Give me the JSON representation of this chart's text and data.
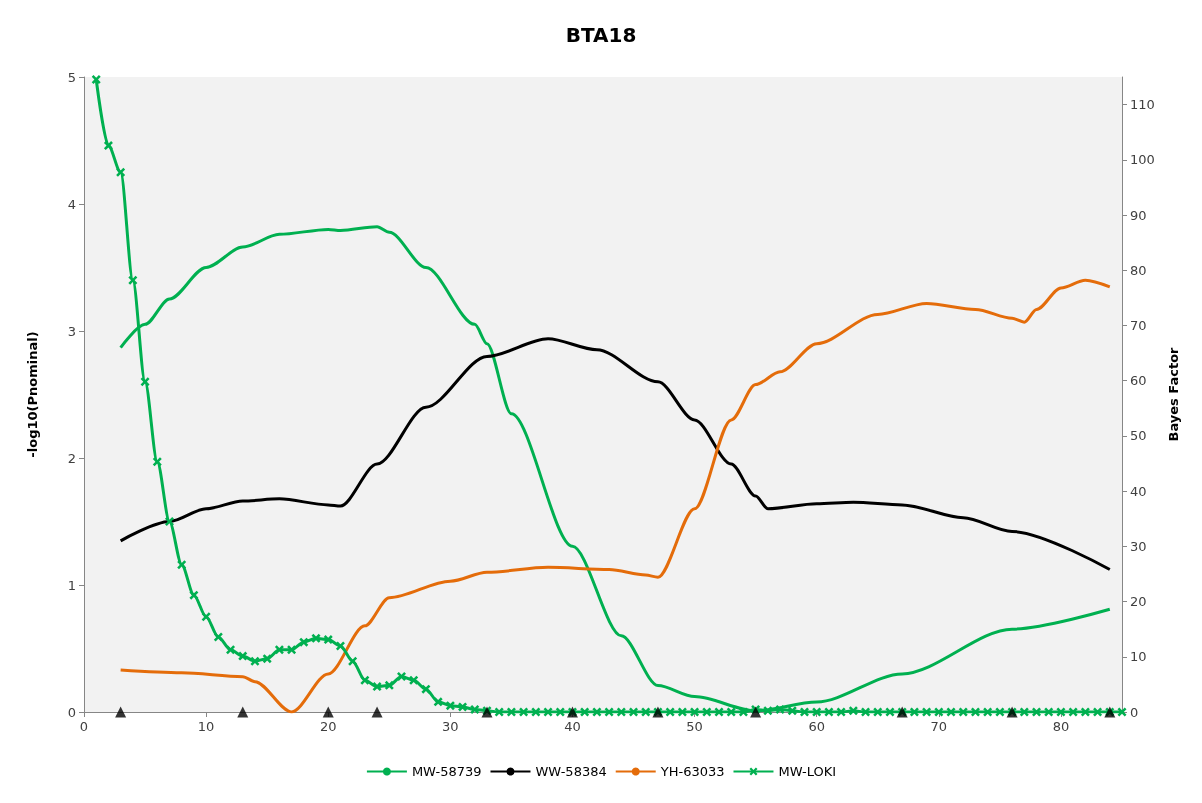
{
  "chart_data": {
    "type": "line",
    "title": "BTA18",
    "ylabel": "-log10(Pnominal)",
    "y2label": "Bayes Factor",
    "xlim": [
      0,
      85
    ],
    "xticks": [
      0,
      10,
      20,
      30,
      40,
      50,
      60,
      70,
      80
    ],
    "ylim": [
      0,
      5
    ],
    "yticks": [
      0,
      1,
      2,
      3,
      4,
      5
    ],
    "y2lim": [
      0,
      115
    ],
    "y2ticks": [
      0,
      10,
      20,
      30,
      40,
      50,
      60,
      70,
      80,
      90,
      100,
      110
    ],
    "grid": false,
    "legend": "bottom",
    "marker": "none",
    "series": [
      {
        "name": "MW-58739",
        "color": "#00b050",
        "axis": "y2",
        "x": [
          3,
          5,
          7,
          10,
          13,
          16,
          20,
          21,
          24,
          25,
          28,
          32,
          33,
          35,
          40,
          44,
          47,
          50,
          55,
          60,
          67,
          76,
          84
        ],
        "values": [
          66,
          70.2,
          74.8,
          80.5,
          84.2,
          86.5,
          87.4,
          87.2,
          87.9,
          86.9,
          80.5,
          70.2,
          66.7,
          54,
          30,
          13.8,
          4.8,
          2.8,
          0.2,
          1.8,
          6.9,
          15,
          18.6
        ]
      },
      {
        "name": "WW-58384",
        "color": "#000000",
        "axis": "y2",
        "x": [
          3,
          7,
          10,
          13,
          16,
          20,
          21,
          24,
          28,
          33,
          38,
          42,
          47,
          50,
          53,
          55,
          56,
          60,
          63,
          67,
          72,
          76,
          84
        ],
        "values": [
          31,
          34.5,
          36.8,
          38.2,
          38.6,
          37.5,
          37.3,
          44.9,
          55.2,
          64.4,
          67.6,
          65.6,
          59.8,
          52.9,
          44.9,
          39.1,
          36.8,
          37.7,
          38,
          37.5,
          35.2,
          32.7,
          25.8
        ]
      },
      {
        "name": "YH-63033",
        "color": "#e46c0a",
        "axis": "y2",
        "x": [
          3,
          8,
          13,
          14,
          17,
          20,
          23,
          25,
          30,
          33,
          38,
          43,
          46,
          47,
          50,
          53,
          55,
          57,
          60,
          65,
          69,
          73,
          76,
          77,
          78,
          80,
          82,
          84
        ],
        "values": [
          7.6,
          7.1,
          6.4,
          5.5,
          0,
          6.9,
          15.6,
          20.7,
          23.7,
          25.3,
          26.2,
          25.8,
          24.8,
          24.4,
          36.8,
          52.9,
          59.3,
          61.6,
          66.7,
          72,
          74,
          72.9,
          71.3,
          70.6,
          72.9,
          76.8,
          78.2,
          77
        ]
      },
      {
        "name": "MW-LOKI",
        "color": "#00b050",
        "axis": "y",
        "marker": "cross",
        "x": [
          1,
          2,
          3,
          4,
          5,
          6,
          7,
          8,
          9,
          10,
          11,
          12,
          13,
          14,
          15,
          16,
          17,
          18,
          19,
          20,
          21,
          22,
          23,
          24,
          25,
          26,
          27,
          28,
          29,
          30,
          31,
          32,
          33,
          34,
          35,
          36,
          37,
          38,
          39,
          40,
          41,
          42,
          43,
          44,
          45,
          46,
          47,
          48,
          49,
          50,
          51,
          52,
          53,
          54,
          55,
          56,
          57,
          58,
          59,
          60,
          61,
          62,
          63,
          64,
          65,
          66,
          67,
          68,
          69,
          70,
          71,
          72,
          73,
          74,
          75,
          76,
          77,
          78,
          79,
          80,
          81,
          82,
          83,
          84,
          85
        ],
        "values": [
          4.98,
          4.46,
          4.25,
          3.4,
          2.6,
          1.97,
          1.5,
          1.16,
          0.92,
          0.75,
          0.59,
          0.49,
          0.44,
          0.4,
          0.42,
          0.49,
          0.49,
          0.55,
          0.58,
          0.57,
          0.52,
          0.4,
          0.25,
          0.2,
          0.21,
          0.28,
          0.25,
          0.18,
          0.08,
          0.05,
          0.04,
          0.02,
          0.01,
          0,
          0,
          0,
          0,
          0,
          0,
          0,
          0,
          0,
          0,
          0,
          0,
          0,
          0,
          0,
          0,
          0,
          0,
          0,
          0,
          0,
          0.02,
          0.01,
          0.02,
          0.01,
          0,
          0,
          0,
          0,
          0.01,
          0,
          0,
          0,
          0,
          0,
          0,
          0,
          0,
          0,
          0,
          0,
          0,
          0,
          0,
          0,
          0,
          0,
          0,
          0,
          0,
          0,
          0
        ]
      },
      {
        "type": "scatter",
        "color": "#000000",
        "axis": "y",
        "marker": "triangle",
        "x": [
          3,
          13,
          20,
          24,
          33,
          40,
          47,
          55,
          67,
          76,
          84
        ],
        "values": [
          0,
          0,
          0,
          0,
          0,
          0,
          0,
          0,
          0,
          0,
          0
        ]
      }
    ]
  }
}
